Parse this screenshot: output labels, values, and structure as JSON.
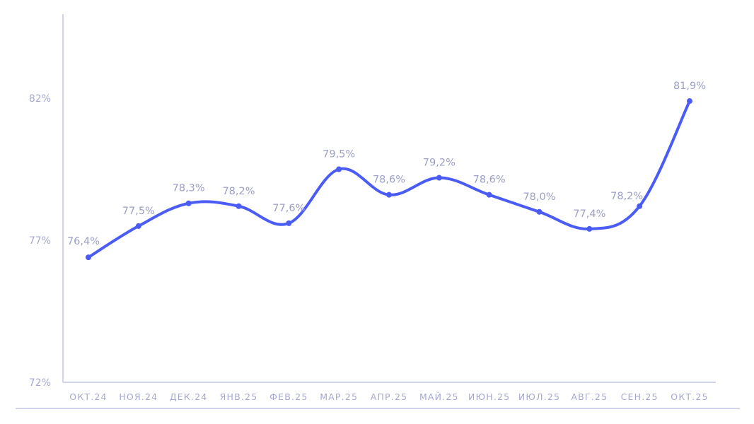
{
  "chart_data": {
    "type": "line",
    "title": "",
    "xlabel": "",
    "ylabel": "",
    "categories": [
      "ОКТ.24",
      "НОЯ.24",
      "ДЕК.24",
      "ЯНВ.25",
      "ФЕВ.25",
      "МАР.25",
      "АПР.25",
      "МАЙ.25",
      "ИЮН.25",
      "ИЮЛ.25",
      "АВГ.25",
      "СЕН.25",
      "ОКТ.25"
    ],
    "values": [
      76.4,
      77.5,
      78.3,
      78.2,
      77.6,
      79.5,
      78.6,
      79.2,
      78.6,
      78.0,
      77.4,
      78.2,
      81.9
    ],
    "data_labels": [
      "76,4%",
      "77,5%",
      "78,3%",
      "78,2%",
      "77,6%",
      "79,5%",
      "78,6%",
      "79,2%",
      "78,6%",
      "78,0%",
      "77,4%",
      "78,2%",
      "81,9%"
    ],
    "yticks": [
      72,
      77,
      82
    ],
    "ytick_labels": [
      "72%",
      "77%",
      "82%"
    ],
    "ylim": [
      72,
      85
    ],
    "grid": false,
    "colors": {
      "line": "#4a5cf4",
      "axis": "#c4c6e6",
      "text": "#a6a8d2"
    }
  }
}
